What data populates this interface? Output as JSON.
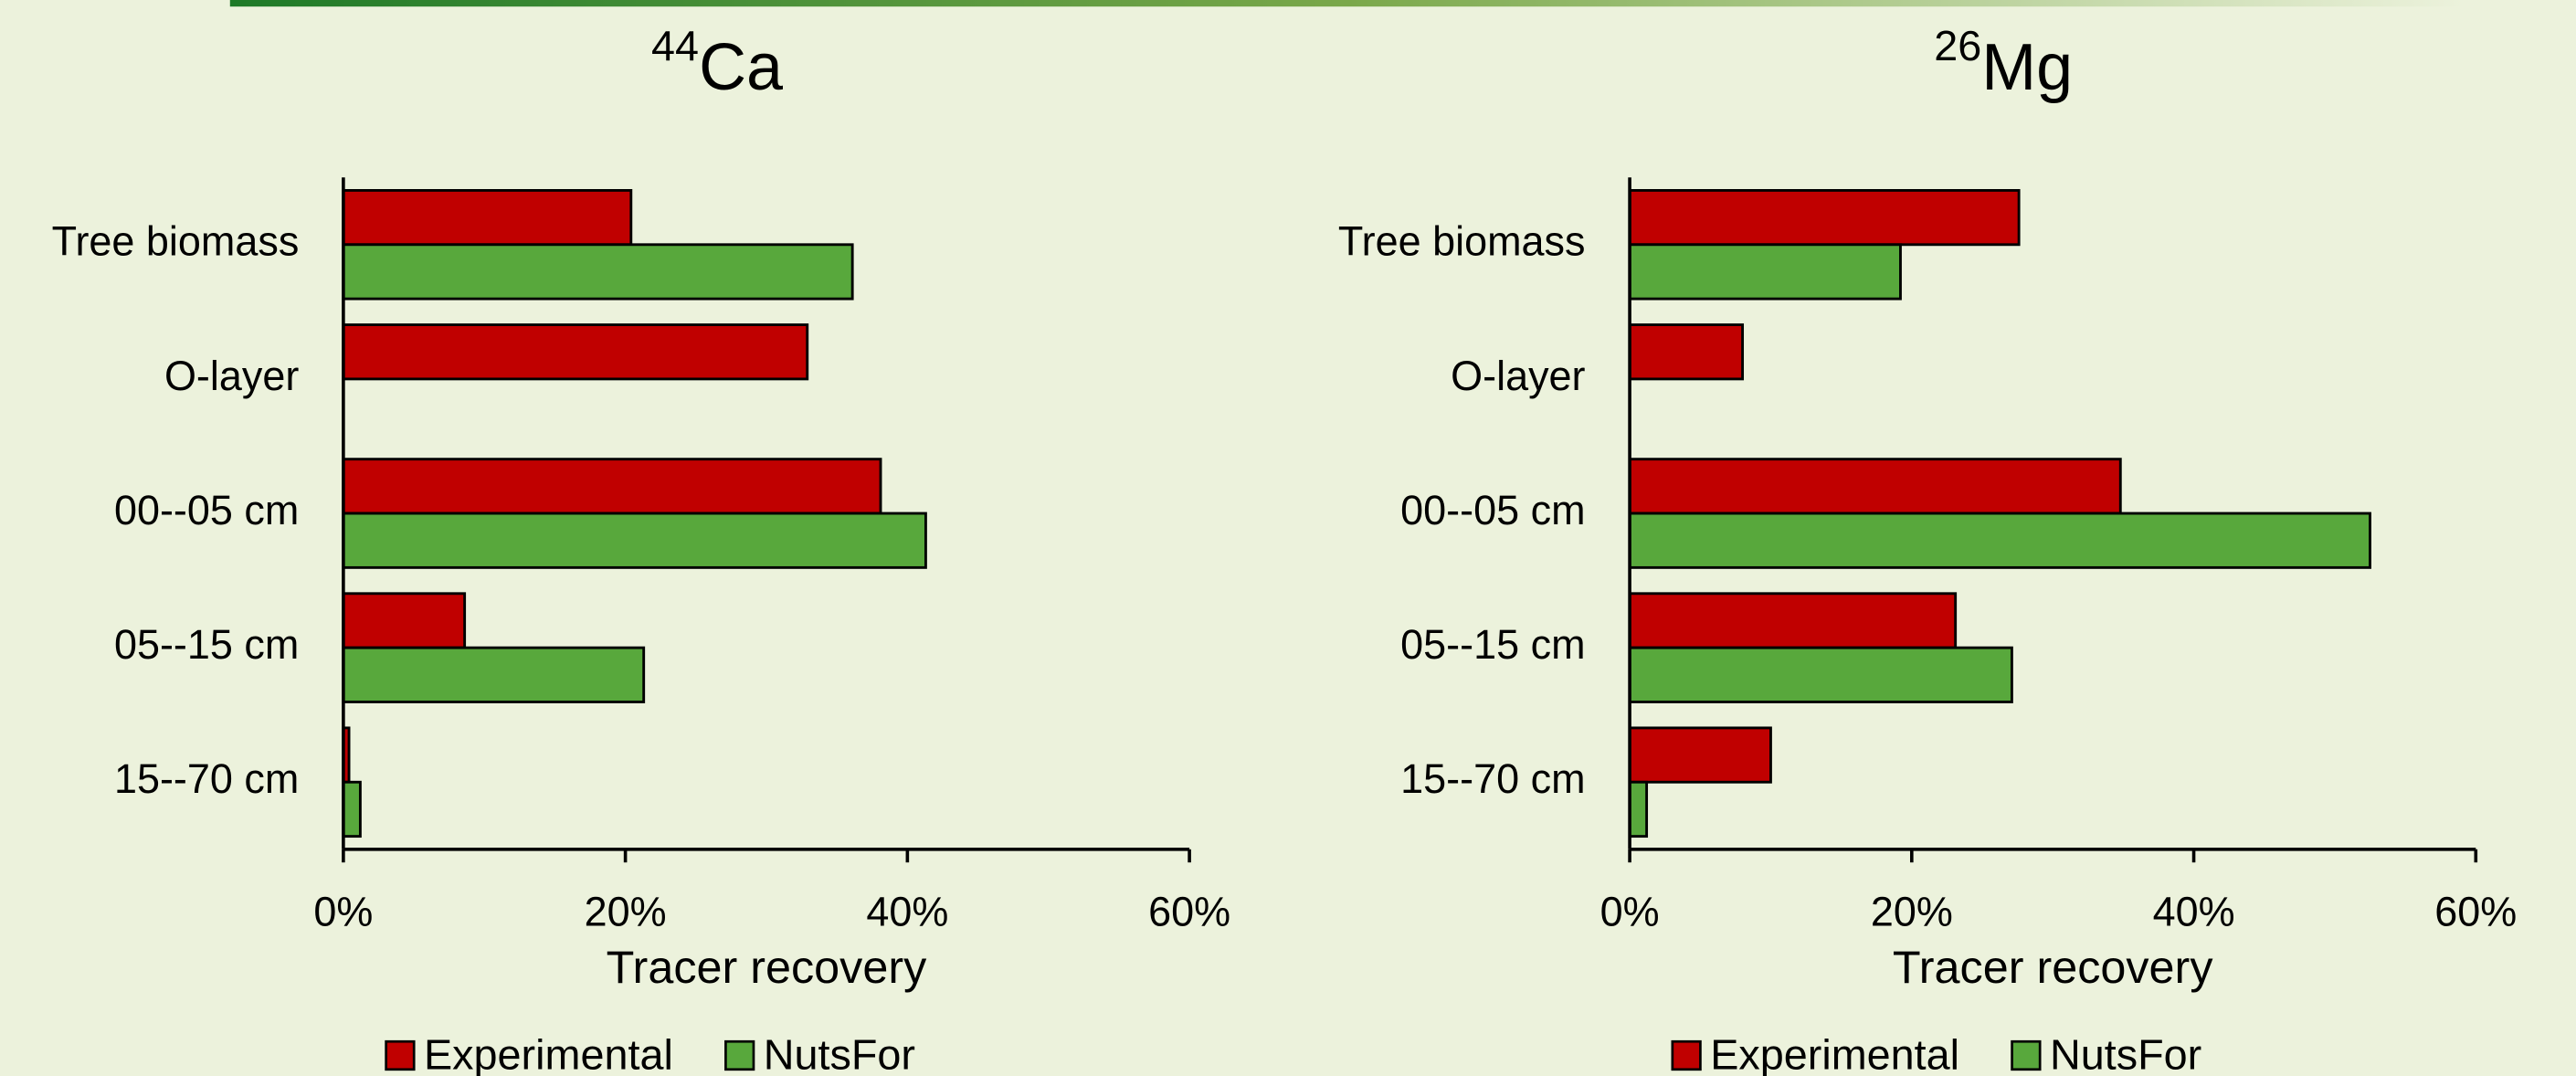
{
  "chart_data": [
    {
      "type": "barh",
      "title": {
        "superscript": "44",
        "text": "Ca"
      },
      "categories": [
        "Tree biomass",
        "O-layer",
        "00--05 cm",
        "05--15 cm",
        "15--70 cm"
      ],
      "series": [
        {
          "name": "Experimental",
          "color": "#c00000",
          "values": [
            20.4,
            32.9,
            38.1,
            8.6,
            0.4
          ]
        },
        {
          "name": "NutsFor",
          "color": "#58a83c",
          "values": [
            36.1,
            null,
            41.3,
            21.3,
            1.2
          ]
        }
      ],
      "xlabel": "Tracer recovery",
      "xlim": [
        0,
        60
      ],
      "xticks": [
        {
          "value": 0,
          "label": "0%"
        },
        {
          "value": 20,
          "label": "20%"
        },
        {
          "value": 40,
          "label": "40%"
        },
        {
          "value": 60,
          "label": "60%"
        }
      ],
      "legend": "bottom"
    },
    {
      "type": "barh",
      "title": {
        "superscript": "26",
        "text": "Mg"
      },
      "categories": [
        "Tree biomass",
        "O-layer",
        "00--05 cm",
        "05--15 cm",
        "15--70 cm"
      ],
      "series": [
        {
          "name": "Experimental",
          "color": "#c00000",
          "values": [
            27.6,
            8.0,
            34.8,
            23.1,
            10.0
          ]
        },
        {
          "name": "NutsFor",
          "color": "#58a83c",
          "values": [
            19.2,
            null,
            52.5,
            27.1,
            1.2
          ]
        }
      ],
      "xlabel": "Tracer recovery",
      "xlim": [
        0,
        60
      ],
      "xticks": [
        {
          "value": 0,
          "label": "0%"
        },
        {
          "value": 20,
          "label": "20%"
        },
        {
          "value": 40,
          "label": "40%"
        },
        {
          "value": 60,
          "label": "60%"
        }
      ],
      "legend": "bottom"
    }
  ]
}
